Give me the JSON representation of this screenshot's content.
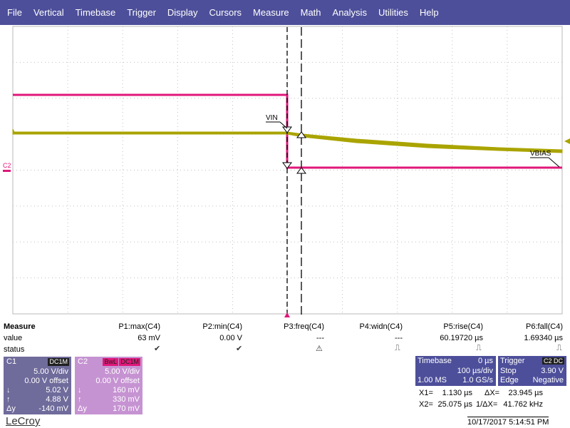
{
  "menu": [
    "File",
    "Vertical",
    "Timebase",
    "Trigger",
    "Display",
    "Cursors",
    "Measure",
    "Math",
    "Analysis",
    "Utilities",
    "Help"
  ],
  "trace_labels": {
    "vin": "VIN",
    "vbias": "VBIAS",
    "c2_marker": "C2"
  },
  "colors": {
    "menu_bg": "#4d4f9a",
    "ch1": "#aaa400",
    "ch2": "#e0177a",
    "ch1_box": "#6f6b9b",
    "ch2_box": "#c693d2",
    "tag_bg": "#202020"
  },
  "measure": {
    "title": "Measure",
    "row_labels": [
      "value",
      "status"
    ],
    "params": [
      {
        "name": "P1:max(C4)",
        "value": "63 mV",
        "status": "check-icon"
      },
      {
        "name": "P2:min(C4)",
        "value": "0.00 V",
        "status": "check-icon"
      },
      {
        "name": "P3:freq(C4)",
        "value": "---",
        "status": "warning-icon"
      },
      {
        "name": "P4:widn(C4)",
        "value": "---",
        "status": "pulse-icon"
      },
      {
        "name": "P5:rise(C4)",
        "value": "60.19720 µs",
        "status": "pulse-icon"
      },
      {
        "name": "P6:fall(C4)",
        "value": "1.69340 µs",
        "status": "pulse-icon"
      }
    ]
  },
  "c1": {
    "label": "C1",
    "tag": "DC1M",
    "vdiv": "5.00 V/div",
    "offset": "0.00 V offset",
    "down_value": "5.02 V",
    "up_value": "4.88 V",
    "dy_label": "Δy",
    "dy_value": "-140 mV"
  },
  "c2": {
    "label": "C2",
    "tags": [
      "BwL",
      "DC1M"
    ],
    "vdiv": "5.00 V/div",
    "offset": "0.00 V offset",
    "down_value": "160 mV",
    "up_value": "330 mV",
    "dy_label": "Δy",
    "dy_value": "170 mV"
  },
  "timebase": {
    "title": "Timebase",
    "delay": "0 µs",
    "div": "100 µs/div",
    "samples": "1.00 MS",
    "rate": "1.0 GS/s"
  },
  "trigger": {
    "title": "Trigger",
    "tag": "C2 DC",
    "mode": "Stop",
    "level": "3.90 V",
    "type": "Edge",
    "slope": "Negative"
  },
  "cursors": {
    "x1_label": "X1=",
    "x1": "1.130 µs",
    "dx_label": "ΔX=",
    "dx": "23.945 µs",
    "x2_label": "X2=",
    "x2": "25.075 µs",
    "inv_label": "1/ΔX=",
    "inv": "41.762 kHz"
  },
  "brand": "LeCroy",
  "datetime": "10/17/2017 5:14:51 PM"
}
